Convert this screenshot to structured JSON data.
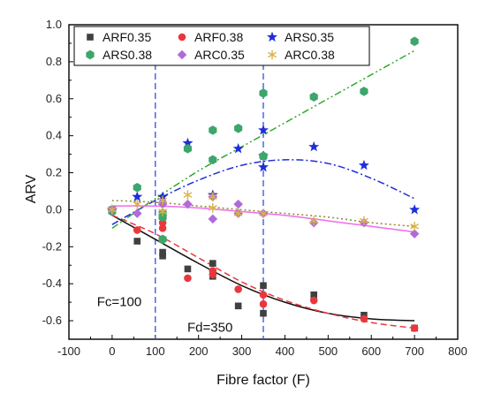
{
  "chart_data": {
    "type": "scatter",
    "xlabel": "Fibre factor (F)",
    "ylabel": "ARV",
    "xlim": [
      -100,
      800
    ],
    "ylim": [
      -0.7,
      1.0
    ],
    "x_ticks": [
      -100,
      0,
      100,
      200,
      300,
      400,
      500,
      600,
      700,
      800
    ],
    "y_ticks": [
      -0.6,
      -0.4,
      -0.2,
      0.0,
      0.2,
      0.4,
      0.6,
      0.8,
      1.0
    ],
    "x_tick_labels": [
      "-100",
      "0",
      "100",
      "200",
      "300",
      "400",
      "500",
      "600",
      "700",
      "800"
    ],
    "y_tick_labels": [
      "-0.6",
      "-0.4",
      "-0.2",
      "0.0",
      "0.2",
      "0.4",
      "0.6",
      "0.8",
      "1.0"
    ],
    "grid": false,
    "legend_position": "top",
    "series": [
      {
        "name": "ARF0.35",
        "marker": "square",
        "color": "#404040",
        "points": [
          [
            0,
            0.0
          ],
          [
            58,
            -0.17
          ],
          [
            117,
            -0.23
          ],
          [
            117,
            -0.25
          ],
          [
            175,
            -0.32
          ],
          [
            233,
            -0.29
          ],
          [
            233,
            -0.36
          ],
          [
            292,
            -0.52
          ],
          [
            350,
            -0.41
          ],
          [
            350,
            -0.56
          ],
          [
            467,
            -0.46
          ],
          [
            583,
            -0.57
          ],
          [
            700,
            -0.64
          ]
        ],
        "trend": {
          "style": "solid",
          "color": "#111111",
          "points": [
            [
              0,
              -0.03
            ],
            [
              100,
              -0.16
            ],
            [
              200,
              -0.29
            ],
            [
              300,
              -0.41
            ],
            [
              400,
              -0.5
            ],
            [
              500,
              -0.56
            ],
            [
              600,
              -0.59
            ],
            [
              700,
              -0.6
            ]
          ]
        }
      },
      {
        "name": "ARF0.38",
        "marker": "circle",
        "color": "#e8383d",
        "points": [
          [
            0,
            0.0
          ],
          [
            58,
            -0.11
          ],
          [
            117,
            -0.07
          ],
          [
            117,
            -0.1
          ],
          [
            175,
            -0.37
          ],
          [
            233,
            -0.33
          ],
          [
            233,
            -0.35
          ],
          [
            292,
            -0.43
          ],
          [
            350,
            -0.46
          ],
          [
            350,
            -0.51
          ],
          [
            467,
            -0.49
          ],
          [
            583,
            -0.59
          ],
          [
            700,
            -0.64
          ]
        ],
        "trend": {
          "style": "dashed",
          "color": "#e8383d",
          "points": [
            [
              0,
              -0.03
            ],
            [
              100,
              -0.13
            ],
            [
              200,
              -0.26
            ],
            [
              300,
              -0.39
            ],
            [
              400,
              -0.49
            ],
            [
              500,
              -0.56
            ],
            [
              600,
              -0.61
            ],
            [
              700,
              -0.64
            ]
          ]
        }
      },
      {
        "name": "ARS0.35",
        "marker": "star",
        "color": "#1f2ed8",
        "points": [
          [
            0,
            0.0
          ],
          [
            58,
            0.07
          ],
          [
            117,
            0.07
          ],
          [
            175,
            0.36
          ],
          [
            233,
            0.08
          ],
          [
            292,
            0.33
          ],
          [
            350,
            0.23
          ],
          [
            350,
            0.29
          ],
          [
            350,
            0.43
          ],
          [
            467,
            0.34
          ],
          [
            583,
            0.24
          ],
          [
            700,
            0.0
          ]
        ],
        "trend": {
          "style": "dashdot",
          "color": "#1f2ed8",
          "points": [
            [
              0,
              -0.08
            ],
            [
              100,
              0.05
            ],
            [
              200,
              0.16
            ],
            [
              300,
              0.24
            ],
            [
              400,
              0.27
            ],
            [
              500,
              0.25
            ],
            [
              600,
              0.17
            ],
            [
              700,
              0.06
            ]
          ]
        }
      },
      {
        "name": "ARS0.38",
        "marker": "hexagon",
        "color": "#3da66b",
        "points": [
          [
            0,
            0.0
          ],
          [
            0,
            -0.01
          ],
          [
            58,
            0.12
          ],
          [
            117,
            -0.02
          ],
          [
            117,
            -0.04
          ],
          [
            117,
            -0.16
          ],
          [
            175,
            0.33
          ],
          [
            233,
            0.27
          ],
          [
            233,
            0.43
          ],
          [
            292,
            0.44
          ],
          [
            350,
            0.29
          ],
          [
            350,
            0.63
          ],
          [
            467,
            0.61
          ],
          [
            583,
            0.64
          ],
          [
            700,
            0.91
          ]
        ],
        "trend": {
          "style": "dashdotdot",
          "color": "#2faa2f",
          "points": [
            [
              0,
              -0.1
            ],
            [
              100,
              0.06
            ],
            [
              200,
              0.21
            ],
            [
              300,
              0.34
            ],
            [
              400,
              0.47
            ],
            [
              500,
              0.6
            ],
            [
              600,
              0.73
            ],
            [
              700,
              0.86
            ]
          ]
        }
      },
      {
        "name": "ARC0.35",
        "marker": "diamond",
        "color": "#b06bd8",
        "points": [
          [
            0,
            0.0
          ],
          [
            58,
            -0.02
          ],
          [
            117,
            0.03
          ],
          [
            117,
            0.04
          ],
          [
            175,
            0.03
          ],
          [
            233,
            0.07
          ],
          [
            233,
            -0.05
          ],
          [
            292,
            0.03
          ],
          [
            292,
            -0.02
          ],
          [
            350,
            -0.02
          ],
          [
            467,
            -0.07
          ],
          [
            583,
            -0.07
          ],
          [
            700,
            -0.13
          ]
        ],
        "trend": {
          "style": "solid",
          "color": "#f06af0",
          "points": [
            [
              0,
              0.02
            ],
            [
              100,
              0.02
            ],
            [
              200,
              0.01
            ],
            [
              300,
              -0.01
            ],
            [
              400,
              -0.03
            ],
            [
              500,
              -0.06
            ],
            [
              600,
              -0.09
            ],
            [
              700,
              -0.12
            ]
          ]
        }
      },
      {
        "name": "ARC0.38",
        "marker": "asterisk",
        "color": "#d9b24a",
        "points": [
          [
            0,
            0.0
          ],
          [
            58,
            0.03
          ],
          [
            117,
            0.05
          ],
          [
            117,
            -0.01
          ],
          [
            175,
            0.08
          ],
          [
            233,
            0.01
          ],
          [
            233,
            0.07
          ],
          [
            292,
            -0.02
          ],
          [
            350,
            -0.02
          ],
          [
            467,
            -0.06
          ],
          [
            583,
            -0.06
          ],
          [
            700,
            -0.09
          ]
        ],
        "trend": {
          "style": "dotted",
          "color": "#8a8a2a",
          "points": [
            [
              0,
              0.05
            ],
            [
              100,
              0.04
            ],
            [
              200,
              0.02
            ],
            [
              300,
              0.0
            ],
            [
              400,
              -0.02
            ],
            [
              500,
              -0.04
            ],
            [
              600,
              -0.07
            ],
            [
              700,
              -0.09
            ]
          ]
        }
      }
    ],
    "reference_lines": [
      {
        "x": 100,
        "label": "Fc=100",
        "color": "#3050e0",
        "style": "dashed"
      },
      {
        "x": 350,
        "label": "Fd=350",
        "color": "#3050e0",
        "style": "dashed"
      }
    ]
  }
}
